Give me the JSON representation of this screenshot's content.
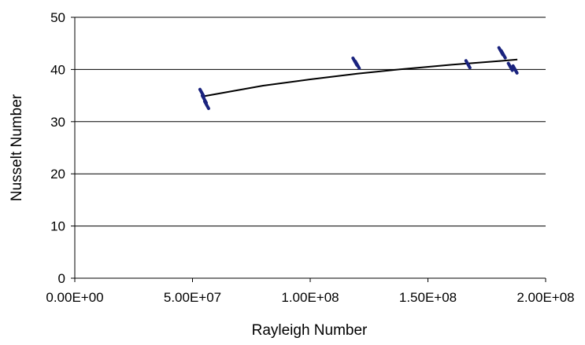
{
  "chart_data": {
    "type": "scatter",
    "xlabel": "Rayleigh Number",
    "ylabel": "Nusselt Number",
    "xlim": [
      0,
      200000000
    ],
    "ylim": [
      0,
      50
    ],
    "x_ticks": [
      0,
      50000000,
      100000000,
      150000000,
      200000000
    ],
    "x_tick_labels": [
      "0.00E+00",
      "5.00E+07",
      "1.00E+08",
      "1.50E+08",
      "2.00E+08"
    ],
    "y_ticks": [
      0,
      10,
      20,
      30,
      40,
      50
    ],
    "y_tick_labels": [
      "0",
      "10",
      "20",
      "30",
      "40",
      "50"
    ],
    "grid": "horizontal",
    "marker_color": "#1a237e",
    "trendline_color": "#000000",
    "points": [
      {
        "x": 54000000,
        "y": 35.5
      },
      {
        "x": 55000000,
        "y": 34.3
      },
      {
        "x": 56000000,
        "y": 33.2
      },
      {
        "x": 119000000,
        "y": 41.5
      },
      {
        "x": 120000000,
        "y": 40.9
      },
      {
        "x": 167000000,
        "y": 41.0
      },
      {
        "x": 181000000,
        "y": 43.5
      },
      {
        "x": 182000000,
        "y": 42.9
      },
      {
        "x": 185000000,
        "y": 40.5
      },
      {
        "x": 187000000,
        "y": 40.0
      }
    ],
    "trendline": {
      "type": "power",
      "points": [
        {
          "x": 54000000,
          "y": 34.8
        },
        {
          "x": 80000000,
          "y": 36.9
        },
        {
          "x": 100000000,
          "y": 38.1
        },
        {
          "x": 120000000,
          "y": 39.2
        },
        {
          "x": 140000000,
          "y": 40.1
        },
        {
          "x": 160000000,
          "y": 40.9
        },
        {
          "x": 180000000,
          "y": 41.6
        },
        {
          "x": 188000000,
          "y": 41.9
        }
      ]
    }
  }
}
